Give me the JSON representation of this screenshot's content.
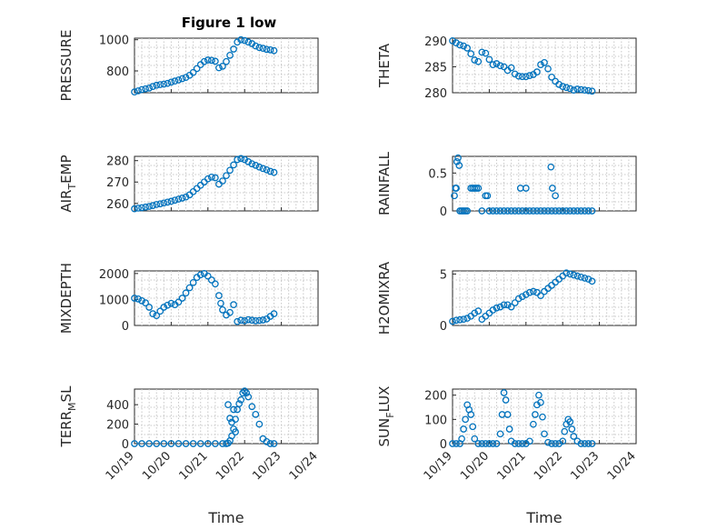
{
  "figure_title": "Figure 1 low",
  "colors": {
    "marker": "#0072BD",
    "axis": "#262626",
    "grid": "#c8c8c8"
  },
  "chart_data": [
    {
      "type": "scatter",
      "title": "Figure 1 low",
      "ylabel": "PRESSURE",
      "ylabel_sub": "",
      "ylabel_suffix": "",
      "xlabel": "",
      "xlim": [
        0,
        5
      ],
      "x_ticklabels": [],
      "ylim": [
        660,
        1010
      ],
      "yticks": [
        800,
        1000
      ],
      "grid": "minor",
      "series": [
        {
          "x": [
            0,
            0.1,
            0.2,
            0.3,
            0.4,
            0.5,
            0.6,
            0.7,
            0.8,
            0.9,
            1.0,
            1.1,
            1.2,
            1.3,
            1.4,
            1.5,
            1.6,
            1.7,
            1.8,
            1.9,
            2.0,
            2.1,
            2.2,
            2.3,
            2.4,
            2.5,
            2.6,
            2.7,
            2.8,
            2.9,
            3.0,
            3.1,
            3.2,
            3.3,
            3.4,
            3.5,
            3.6,
            3.7,
            3.8
          ],
          "y": [
            665,
            672,
            680,
            685,
            690,
            700,
            708,
            712,
            715,
            720,
            728,
            735,
            742,
            750,
            758,
            772,
            790,
            815,
            840,
            860,
            870,
            868,
            862,
            820,
            830,
            860,
            900,
            940,
            985,
            1000,
            995,
            985,
            975,
            960,
            950,
            945,
            938,
            935,
            930
          ]
        }
      ]
    },
    {
      "type": "scatter",
      "title": "",
      "ylabel": "THETA",
      "ylabel_sub": "",
      "ylabel_suffix": "",
      "xlabel": "",
      "xlim": [
        0,
        5
      ],
      "x_ticklabels": [],
      "ylim": [
        280,
        290.5
      ],
      "yticks": [
        280,
        285,
        290
      ],
      "grid": "minor",
      "series": [
        {
          "x": [
            0,
            0.1,
            0.2,
            0.3,
            0.4,
            0.5,
            0.6,
            0.7,
            0.8,
            0.9,
            1.0,
            1.1,
            1.2,
            1.3,
            1.4,
            1.5,
            1.6,
            1.7,
            1.8,
            1.9,
            2.0,
            2.1,
            2.2,
            2.3,
            2.4,
            2.5,
            2.6,
            2.7,
            2.8,
            2.9,
            3.0,
            3.1,
            3.2,
            3.3,
            3.4,
            3.5,
            3.6,
            3.7,
            3.8
          ],
          "y": [
            290,
            289.6,
            289.2,
            289,
            288.6,
            287.5,
            286.3,
            286,
            287.8,
            287.6,
            286.4,
            285.4,
            285.6,
            285.2,
            285,
            284.3,
            284.8,
            283.6,
            283.2,
            283.1,
            283.1,
            283.3,
            283.5,
            284,
            285.4,
            285.8,
            284.6,
            283,
            282.2,
            281.6,
            281.2,
            281,
            280.8,
            280.5,
            280.7,
            280.6,
            280.5,
            280.4,
            280.3
          ]
        }
      ]
    },
    {
      "type": "scatter",
      "title": "",
      "ylabel": "AIR",
      "ylabel_sub": "T",
      "ylabel_suffix": "EMP",
      "xlabel": "",
      "xlim": [
        0,
        5
      ],
      "x_ticklabels": [],
      "ylim": [
        256.5,
        282
      ],
      "yticks": [
        260,
        270,
        280
      ],
      "grid": "minor",
      "series": [
        {
          "x": [
            0,
            0.1,
            0.2,
            0.3,
            0.4,
            0.5,
            0.6,
            0.7,
            0.8,
            0.9,
            1.0,
            1.1,
            1.2,
            1.3,
            1.4,
            1.5,
            1.6,
            1.7,
            1.8,
            1.9,
            2.0,
            2.1,
            2.2,
            2.3,
            2.4,
            2.5,
            2.6,
            2.7,
            2.8,
            2.9,
            3.0,
            3.1,
            3.2,
            3.3,
            3.4,
            3.5,
            3.6,
            3.7,
            3.8
          ],
          "y": [
            257.5,
            257.8,
            258,
            258.3,
            258.6,
            259,
            259.5,
            259.8,
            260.2,
            260.6,
            261,
            261.5,
            262,
            262.5,
            263,
            264,
            265.5,
            267,
            268.5,
            270,
            271.5,
            272.3,
            272,
            269,
            270.5,
            273,
            275.5,
            278,
            280.5,
            281,
            280.5,
            279.5,
            278.5,
            277.8,
            277,
            276.3,
            275.7,
            275,
            274.5
          ]
        }
      ]
    },
    {
      "type": "scatter",
      "title": "",
      "ylabel": "RAINFALL",
      "ylabel_sub": "",
      "ylabel_suffix": "",
      "xlabel": "",
      "xlim": [
        0,
        5
      ],
      "x_ticklabels": [],
      "ylim": [
        0,
        0.72
      ],
      "yticks": [
        0,
        0.5
      ],
      "grid": "minor",
      "series": [
        {
          "x": [
            0.05,
            0.08,
            0.1,
            0.12,
            0.15,
            0.18,
            0.2,
            0.25,
            0.3,
            0.35,
            0.4,
            0.5,
            0.55,
            0.6,
            0.65,
            0.7,
            0.8,
            0.9,
            0.95,
            1.0,
            1.1,
            1.2,
            1.3,
            1.4,
            1.5,
            1.6,
            1.7,
            1.8,
            1.9,
            2.0,
            2.1,
            2.2,
            2.3,
            2.4,
            2.5,
            2.6,
            2.7,
            2.8,
            2.9,
            3.0,
            3.1,
            3.2,
            3.3,
            3.4,
            3.5,
            3.6,
            3.7,
            3.8,
            1.85,
            2.0,
            2.68,
            2.72,
            2.8
          ],
          "y": [
            0.2,
            0.3,
            0.3,
            0.65,
            0.7,
            0.6,
            0.0,
            0.0,
            0.0,
            0.0,
            0.0,
            0.3,
            0.3,
            0.3,
            0.3,
            0.3,
            0.0,
            0.2,
            0.2,
            0.0,
            0.0,
            0.0,
            0.0,
            0.0,
            0.0,
            0.0,
            0.0,
            0.0,
            0.0,
            0.0,
            0.0,
            0.0,
            0.0,
            0.0,
            0.0,
            0.0,
            0.0,
            0.0,
            0.0,
            0.0,
            0.0,
            0.0,
            0.0,
            0.0,
            0.0,
            0.0,
            0.0,
            0.0,
            0.3,
            0.3,
            0.58,
            0.3,
            0.2
          ]
        }
      ]
    },
    {
      "type": "scatter",
      "title": "",
      "ylabel": "MIXDEPTH",
      "ylabel_sub": "",
      "ylabel_suffix": "",
      "xlabel": "",
      "xlim": [
        0,
        5
      ],
      "x_ticklabels": [],
      "ylim": [
        0,
        2100
      ],
      "yticks": [
        0,
        1000,
        2000
      ],
      "grid": "minor",
      "series": [
        {
          "x": [
            0,
            0.1,
            0.2,
            0.3,
            0.4,
            0.5,
            0.6,
            0.7,
            0.8,
            0.9,
            1.0,
            1.1,
            1.2,
            1.3,
            1.4,
            1.5,
            1.6,
            1.7,
            1.8,
            1.9,
            2.0,
            2.1,
            2.2,
            2.3,
            2.35,
            2.4,
            2.5,
            2.6,
            2.7,
            2.8,
            2.9,
            3.0,
            3.1,
            3.2,
            3.3,
            3.4,
            3.5,
            3.6,
            3.7,
            3.8
          ],
          "y": [
            1050,
            1020,
            950,
            870,
            700,
            450,
            380,
            550,
            700,
            780,
            850,
            800,
            900,
            1050,
            1250,
            1450,
            1650,
            1850,
            1950,
            2000,
            1900,
            1750,
            1600,
            1150,
            850,
            600,
            400,
            500,
            800,
            150,
            200,
            180,
            220,
            200,
            180,
            190,
            210,
            250,
            350,
            450
          ]
        }
      ]
    },
    {
      "type": "scatter",
      "title": "",
      "ylabel": "H2OMIXRA",
      "ylabel_sub": "",
      "ylabel_suffix": "",
      "xlabel": "",
      "xlim": [
        0,
        5
      ],
      "x_ticklabels": [],
      "ylim": [
        0,
        5.3
      ],
      "yticks": [
        0,
        5
      ],
      "grid": "minor",
      "series": [
        {
          "x": [
            0,
            0.1,
            0.2,
            0.3,
            0.4,
            0.5,
            0.6,
            0.7,
            0.8,
            0.9,
            1.0,
            1.1,
            1.2,
            1.3,
            1.4,
            1.5,
            1.6,
            1.7,
            1.8,
            1.9,
            2.0,
            2.1,
            2.2,
            2.3,
            2.4,
            2.5,
            2.6,
            2.7,
            2.8,
            2.9,
            3.0,
            3.1,
            3.2,
            3.3,
            3.4,
            3.5,
            3.6,
            3.7,
            3.8
          ],
          "y": [
            0.4,
            0.5,
            0.55,
            0.6,
            0.7,
            0.9,
            1.2,
            1.4,
            0.6,
            0.9,
            1.2,
            1.5,
            1.7,
            1.8,
            2.0,
            2.0,
            1.8,
            2.2,
            2.6,
            2.8,
            3.0,
            3.2,
            3.3,
            3.2,
            2.9,
            3.3,
            3.6,
            3.9,
            4.2,
            4.5,
            4.8,
            5.1,
            5.0,
            4.9,
            4.8,
            4.7,
            4.6,
            4.5,
            4.3
          ]
        }
      ]
    },
    {
      "type": "scatter",
      "title": "",
      "ylabel": "TERR",
      "ylabel_sub": "M",
      "ylabel_suffix": "SL",
      "xlabel": "Time",
      "xlim": [
        0,
        5
      ],
      "x_ticklabels": [
        "10/19",
        "10/20",
        "10/21",
        "10/22",
        "10/23",
        "10/24"
      ],
      "ylim": [
        0,
        560
      ],
      "yticks": [
        0,
        200,
        400
      ],
      "grid": "minor",
      "series": [
        {
          "x": [
            0,
            0.2,
            0.4,
            0.6,
            0.8,
            1.0,
            1.2,
            1.4,
            1.6,
            1.8,
            2.0,
            2.2,
            2.4,
            2.5,
            2.55,
            2.6,
            2.65,
            2.7,
            2.75,
            2.8,
            2.85,
            2.9,
            2.95,
            3.0,
            3.05,
            3.1,
            3.2,
            3.3,
            3.4,
            3.5,
            3.6,
            3.7,
            3.8,
            2.55,
            2.6,
            2.65,
            2.7,
            2.75
          ],
          "y": [
            0,
            0,
            0,
            0,
            0,
            0,
            0,
            0,
            0,
            0,
            0,
            0,
            0,
            0,
            5,
            30,
            80,
            150,
            250,
            350,
            410,
            450,
            520,
            540,
            520,
            480,
            380,
            300,
            200,
            50,
            20,
            0,
            0,
            400,
            260,
            220,
            350,
            120
          ]
        }
      ]
    },
    {
      "type": "scatter",
      "title": "",
      "ylabel": "SUN",
      "ylabel_sub": "F",
      "ylabel_suffix": "LUX",
      "xlabel": "Time",
      "xlim": [
        0,
        5
      ],
      "x_ticklabels": [
        "10/19",
        "10/20",
        "10/21",
        "10/22",
        "10/23",
        "10/24"
      ],
      "ylim": [
        0,
        225
      ],
      "yticks": [
        0,
        100,
        200
      ],
      "grid": "minor",
      "series": [
        {
          "x": [
            0,
            0.1,
            0.2,
            0.25,
            0.3,
            0.35,
            0.4,
            0.45,
            0.5,
            0.55,
            0.6,
            0.7,
            0.8,
            0.9,
            1.0,
            1.1,
            1.2,
            1.3,
            1.35,
            1.4,
            1.45,
            1.5,
            1.55,
            1.6,
            1.7,
            1.8,
            1.9,
            2.0,
            2.1,
            2.2,
            2.25,
            2.3,
            2.35,
            2.4,
            2.45,
            2.5,
            2.6,
            2.7,
            2.8,
            2.9,
            3.0,
            3.05,
            3.1,
            3.15,
            3.2,
            3.25,
            3.3,
            3.4,
            3.5,
            3.6,
            3.7,
            3.8
          ],
          "y": [
            0,
            0,
            0,
            20,
            60,
            100,
            160,
            140,
            120,
            70,
            20,
            0,
            0,
            0,
            0,
            0,
            0,
            40,
            120,
            210,
            180,
            120,
            60,
            10,
            0,
            0,
            0,
            0,
            10,
            80,
            120,
            160,
            200,
            170,
            110,
            40,
            5,
            0,
            0,
            0,
            10,
            50,
            80,
            100,
            90,
            60,
            30,
            10,
            0,
            0,
            0,
            0
          ]
        }
      ]
    }
  ]
}
